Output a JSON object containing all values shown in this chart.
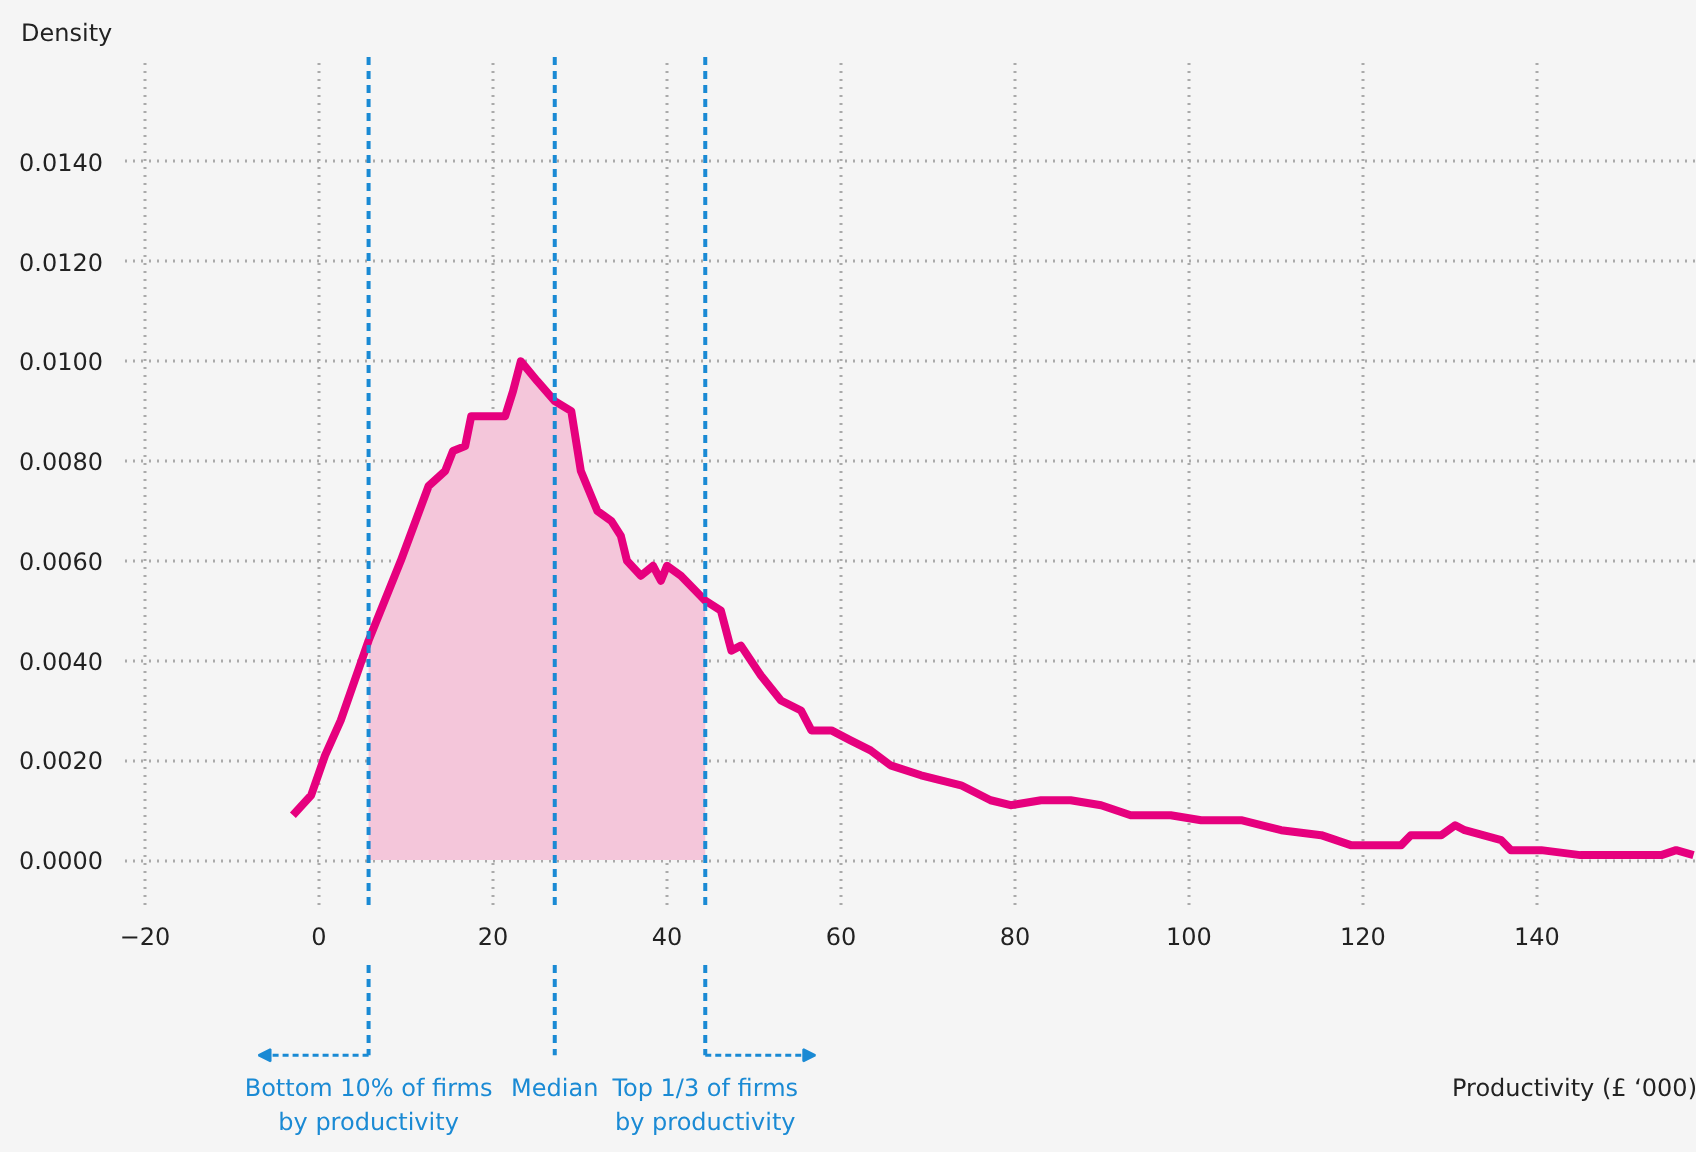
{
  "chart_data": {
    "type": "line",
    "annotations": [
      "Productivity (£ ‘000)"
    ],
    "ylabel": "Density",
    "series": [
      {
        "color": "#e6007e",
        "x": [
          -3.0,
          -0.9,
          0.7,
          2.5,
          5.7,
          9.4,
          12.6,
          14.5,
          15.4,
          16.8,
          17.5,
          21.4,
          22.3,
          23.2,
          25.1,
          27.1,
          29.0,
          30.1,
          32.0,
          33.6,
          34.7,
          35.4,
          37.0,
          38.4,
          39.3,
          40.0,
          41.6,
          44.4,
          46.2,
          47.4,
          48.5,
          50.8,
          53.1,
          55.4,
          56.6,
          58.9,
          61.1,
          63.4,
          65.7,
          69.2,
          73.8,
          77.2,
          79.5,
          83.0,
          86.4,
          89.9,
          93.3,
          97.9,
          101.4,
          106.0,
          110.6,
          115.2,
          118.6,
          124.4,
          125.5,
          129.0,
          130.6,
          131.7,
          135.9,
          137.0,
          140.5,
          145.0,
          154.3,
          156.0,
          158.0
        ],
        "values": [
          0.0009,
          0.0013,
          0.0021,
          0.0028,
          0.0044,
          0.006,
          0.0075,
          0.0078,
          0.0082,
          0.0083,
          0.0089,
          0.0089,
          0.0094,
          0.01,
          0.0096,
          0.0092,
          0.009,
          0.0078,
          0.007,
          0.0068,
          0.0065,
          0.006,
          0.0057,
          0.0059,
          0.0056,
          0.0059,
          0.0057,
          0.0052,
          0.005,
          0.0042,
          0.0043,
          0.0037,
          0.0032,
          0.003,
          0.0026,
          0.0026,
          0.0024,
          0.0022,
          0.0019,
          0.0017,
          0.0015,
          0.0012,
          0.0011,
          0.0012,
          0.0012,
          0.0011,
          0.0009,
          0.0009,
          0.0008,
          0.0008,
          0.0006,
          0.0005,
          0.0003,
          0.0003,
          0.0005,
          0.0005,
          0.0007,
          0.0006,
          0.0004,
          0.0002,
          0.0002,
          0.0001,
          0.0001,
          0.0002,
          0.0001
        ]
      },
      {
        "type": "area",
        "color": "#f4c6da",
        "x": [
          5.7,
          9.4,
          12.6,
          14.5,
          15.4,
          16.8,
          17.5,
          21.4,
          22.3,
          23.2,
          25.1,
          27.1,
          29.0,
          30.1,
          32.0,
          33.6,
          34.7,
          35.4,
          37.0,
          38.4,
          39.3,
          40.0,
          41.6,
          44.4
        ],
        "values": [
          0.0044,
          0.006,
          0.0075,
          0.0078,
          0.0082,
          0.0083,
          0.0089,
          0.0089,
          0.0094,
          0.01,
          0.0096,
          0.0092,
          0.009,
          0.0078,
          0.007,
          0.0068,
          0.0065,
          0.006,
          0.0057,
          0.0059,
          0.0056,
          0.0059,
          0.0057,
          0.0052
        ]
      }
    ],
    "xlim": [
      -22.3,
      158.4
    ],
    "ylim": [
      -0.0009,
      0.0161
    ],
    "xticks": [
      -20,
      0,
      20,
      40,
      60,
      80,
      100,
      120,
      140
    ],
    "yticks": [
      {
        "value": 0,
        "label": "0.0000"
      },
      {
        "value": 0.002,
        "label": "0.0020"
      },
      {
        "value": 0.004,
        "label": "0.0040"
      },
      {
        "value": 0.006,
        "label": "0.0060"
      },
      {
        "value": 0.008,
        "label": "0.0080"
      },
      {
        "value": 0.01,
        "label": "0.0100"
      },
      {
        "value": 0.012,
        "label": "0.0120"
      },
      {
        "value": 0.014,
        "label": "0.0140"
      }
    ],
    "grid": true,
    "ref_lines": [
      {
        "axis": "x",
        "value": 5.7,
        "label": "Bottom 10% of firms\nby productivity",
        "color": "#1a8ad4",
        "line_style": "dashed"
      },
      {
        "axis": "x",
        "value": 27.1,
        "label": "Median",
        "color": "#1a8ad4",
        "line_style": "dashed"
      },
      {
        "axis": "x",
        "value": 44.4,
        "label": "Top 1/3 of firms\nby productivity",
        "color": "#1a8ad4",
        "line_style": "dashed"
      }
    ]
  }
}
